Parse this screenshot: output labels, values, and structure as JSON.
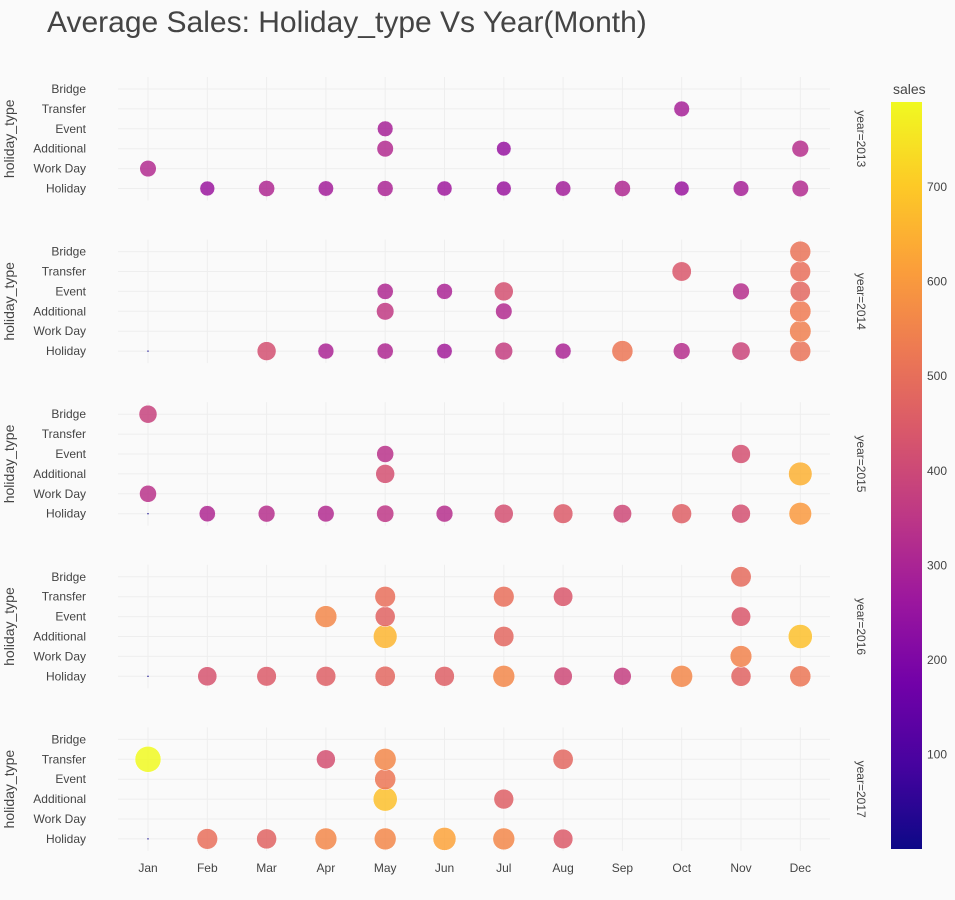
{
  "chart_data": {
    "type": "scatter",
    "title": "Average Sales: Holiday_type Vs Year(Month)",
    "ylabel": "holiday_type",
    "categories_x": [
      "Jan",
      "Feb",
      "Mar",
      "Apr",
      "May",
      "Jun",
      "Jul",
      "Aug",
      "Sep",
      "Oct",
      "Nov",
      "Dec"
    ],
    "categories_y": [
      "Holiday",
      "Work Day",
      "Additional",
      "Event",
      "Transfer",
      "Bridge"
    ],
    "colorbar": {
      "title": "sales",
      "range": [
        0,
        790
      ],
      "ticks": [
        100,
        200,
        300,
        400,
        500,
        600,
        700
      ],
      "colorscale": [
        "#0d0887",
        "#46039f",
        "#7201a8",
        "#9c179e",
        "#bd3786",
        "#d8576b",
        "#ed7953",
        "#fb9f3a",
        "#fdca26",
        "#f0f921"
      ]
    },
    "facets": [
      {
        "label": "year=2013",
        "points": [
          [
            "Jan",
            "Holiday",
            0
          ],
          [
            "Feb",
            "Holiday",
            260
          ],
          [
            "Mar",
            "Holiday",
            310
          ],
          [
            "Apr",
            "Holiday",
            280
          ],
          [
            "May",
            "Holiday",
            300
          ],
          [
            "Jun",
            "Holiday",
            270
          ],
          [
            "Jul",
            "Holiday",
            260
          ],
          [
            "Aug",
            "Holiday",
            280
          ],
          [
            "Sep",
            "Holiday",
            310
          ],
          [
            "Oct",
            "Holiday",
            260
          ],
          [
            "Nov",
            "Holiday",
            290
          ],
          [
            "Dec",
            "Holiday",
            320
          ],
          [
            "Jan",
            "Work Day",
            320
          ],
          [
            "May",
            "Additional",
            320
          ],
          [
            "Jul",
            "Additional",
            250
          ],
          [
            "Dec",
            "Additional",
            330
          ],
          [
            "May",
            "Event",
            290
          ],
          [
            "Oct",
            "Transfer",
            290
          ]
        ]
      },
      {
        "label": "year=2014",
        "points": [
          [
            "Jan",
            "Holiday",
            5
          ],
          [
            "Mar",
            "Holiday",
            420
          ],
          [
            "Apr",
            "Holiday",
            300
          ],
          [
            "May",
            "Holiday",
            310
          ],
          [
            "Jun",
            "Holiday",
            280
          ],
          [
            "Jul",
            "Holiday",
            370
          ],
          [
            "Aug",
            "Holiday",
            300
          ],
          [
            "Sep",
            "Holiday",
            520
          ],
          [
            "Oct",
            "Holiday",
            330
          ],
          [
            "Nov",
            "Holiday",
            390
          ],
          [
            "Dec",
            "Holiday",
            510
          ],
          [
            "Dec",
            "Work Day",
            540
          ],
          [
            "May",
            "Additional",
            360
          ],
          [
            "Jul",
            "Additional",
            320
          ],
          [
            "Dec",
            "Additional",
            530
          ],
          [
            "May",
            "Event",
            310
          ],
          [
            "Jun",
            "Event",
            300
          ],
          [
            "Jul",
            "Event",
            420
          ],
          [
            "Nov",
            "Event",
            330
          ],
          [
            "Dec",
            "Event",
            480
          ],
          [
            "Oct",
            "Transfer",
            440
          ],
          [
            "Dec",
            "Transfer",
            500
          ],
          [
            "Dec",
            "Bridge",
            510
          ]
        ]
      },
      {
        "label": "year=2015",
        "points": [
          [
            "Jan",
            "Holiday",
            5
          ],
          [
            "Feb",
            "Holiday",
            310
          ],
          [
            "Mar",
            "Holiday",
            330
          ],
          [
            "Apr",
            "Holiday",
            320
          ],
          [
            "May",
            "Holiday",
            350
          ],
          [
            "Jun",
            "Holiday",
            330
          ],
          [
            "Jul",
            "Holiday",
            420
          ],
          [
            "Aug",
            "Holiday",
            450
          ],
          [
            "Sep",
            "Holiday",
            400
          ],
          [
            "Oct",
            "Holiday",
            460
          ],
          [
            "Nov",
            "Holiday",
            420
          ],
          [
            "Dec",
            "Holiday",
            600
          ],
          [
            "Jan",
            "Work Day",
            340
          ],
          [
            "May",
            "Additional",
            420
          ],
          [
            "Dec",
            "Additional",
            650
          ],
          [
            "May",
            "Event",
            340
          ],
          [
            "Nov",
            "Event",
            420
          ],
          [
            "Jan",
            "Bridge",
            380
          ]
        ]
      },
      {
        "label": "year=2016",
        "points": [
          [
            "Jan",
            "Holiday",
            5
          ],
          [
            "Feb",
            "Holiday",
            430
          ],
          [
            "Mar",
            "Holiday",
            450
          ],
          [
            "Apr",
            "Holiday",
            460
          ],
          [
            "May",
            "Holiday",
            480
          ],
          [
            "Jun",
            "Holiday",
            460
          ],
          [
            "Jul",
            "Holiday",
            560
          ],
          [
            "Aug",
            "Holiday",
            400
          ],
          [
            "Sep",
            "Holiday",
            370
          ],
          [
            "Oct",
            "Holiday",
            560
          ],
          [
            "Nov",
            "Holiday",
            470
          ],
          [
            "Dec",
            "Holiday",
            520
          ],
          [
            "Nov",
            "Work Day",
            550
          ],
          [
            "May",
            "Additional",
            660
          ],
          [
            "Jul",
            "Additional",
            480
          ],
          [
            "Dec",
            "Additional",
            680
          ],
          [
            "Apr",
            "Event",
            560
          ],
          [
            "May",
            "Event",
            470
          ],
          [
            "Nov",
            "Event",
            440
          ],
          [
            "May",
            "Transfer",
            500
          ],
          [
            "Jul",
            "Transfer",
            500
          ],
          [
            "Aug",
            "Transfer",
            440
          ],
          [
            "Nov",
            "Bridge",
            490
          ]
        ]
      },
      {
        "label": "year=2017",
        "points": [
          [
            "Jan",
            "Holiday",
            5
          ],
          [
            "Feb",
            "Holiday",
            500
          ],
          [
            "Mar",
            "Holiday",
            470
          ],
          [
            "Apr",
            "Holiday",
            560
          ],
          [
            "May",
            "Holiday",
            560
          ],
          [
            "Jun",
            "Holiday",
            620
          ],
          [
            "Jul",
            "Holiday",
            560
          ],
          [
            "Aug",
            "Holiday",
            450
          ],
          [
            "May",
            "Additional",
            680
          ],
          [
            "Jul",
            "Additional",
            460
          ],
          [
            "May",
            "Event",
            520
          ],
          [
            "Jan",
            "Transfer",
            790
          ],
          [
            "Apr",
            "Transfer",
            420
          ],
          [
            "May",
            "Transfer",
            560
          ],
          [
            "Aug",
            "Transfer",
            480
          ]
        ]
      }
    ]
  }
}
